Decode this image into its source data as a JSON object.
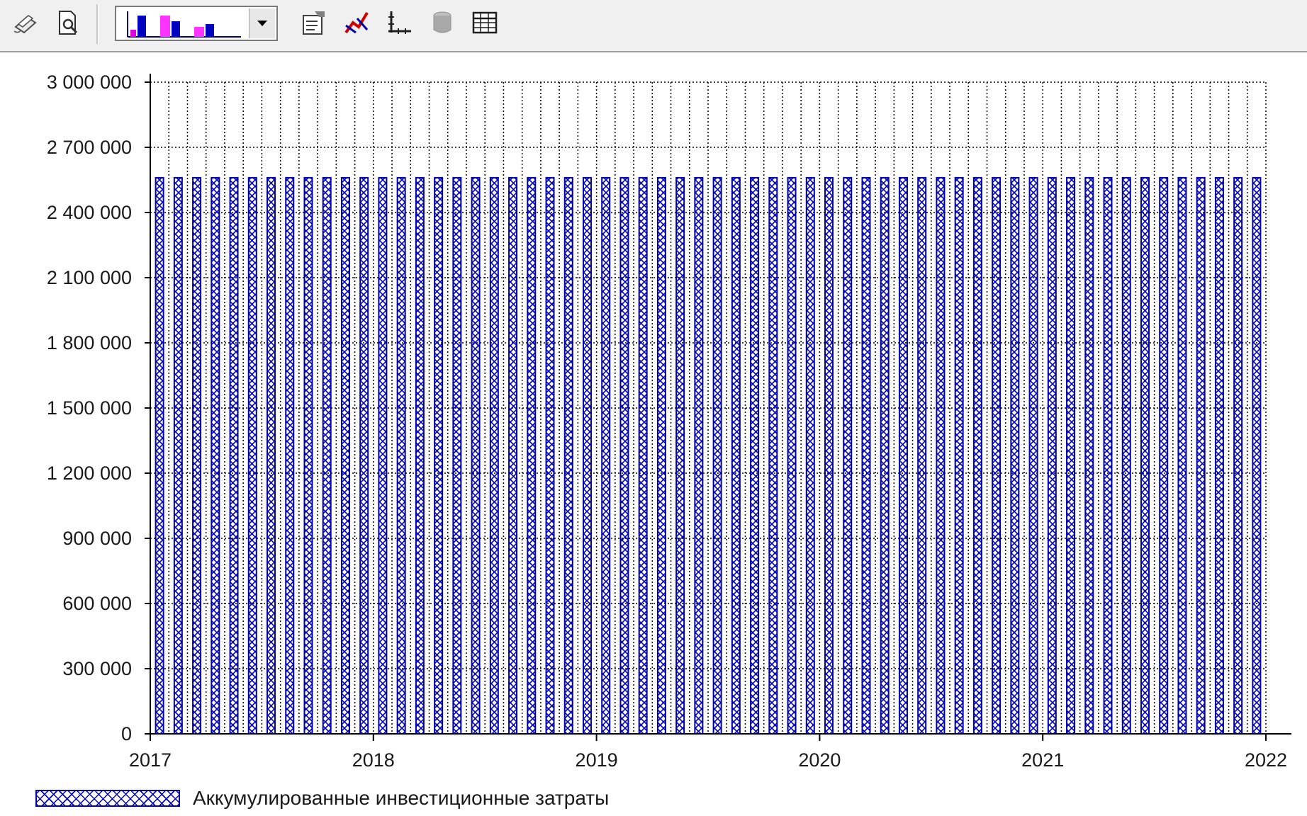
{
  "toolbar": {
    "buttons": [
      {
        "name": "print-icon"
      },
      {
        "name": "print-preview-icon"
      },
      {
        "name": "chart-properties-icon"
      },
      {
        "name": "series-style-icon"
      },
      {
        "name": "axis-settings-icon"
      },
      {
        "name": "3d-view-icon"
      },
      {
        "name": "data-table-icon"
      }
    ],
    "chart_type_select": {
      "selected": "bar-chart"
    }
  },
  "colors": {
    "bar_stroke": "#0000a8",
    "bar_hatch": "#0000c0",
    "grid": "#000000",
    "toolbar_bg": "#f0f0f0"
  },
  "chart_data": {
    "type": "bar",
    "x_ticks": [
      "2017",
      "2018",
      "2019",
      "2020",
      "2021",
      "2022"
    ],
    "y_ticks": [
      "0",
      "300 000",
      "600 000",
      "900 000",
      "1 200 000",
      "1 500 000",
      "1 800 000",
      "2 100 000",
      "2 400 000",
      "2 700 000",
      "3 000 000"
    ],
    "ylim": [
      0,
      3000000
    ],
    "xlim": [
      "2017-01",
      "2022-01"
    ],
    "grid": true,
    "grid_style": "dotted",
    "legend_position": "bottom-left",
    "series": [
      {
        "name": "Аккумулированные инвестиционные затраты",
        "pattern": "crosshatch",
        "x": [
          "2017-01",
          "2017-02",
          "2017-03",
          "2017-04",
          "2017-05",
          "2017-06",
          "2017-07",
          "2017-08",
          "2017-09",
          "2017-10",
          "2017-11",
          "2017-12",
          "2018-01",
          "2018-02",
          "2018-03",
          "2018-04",
          "2018-05",
          "2018-06",
          "2018-07",
          "2018-08",
          "2018-09",
          "2018-10",
          "2018-11",
          "2018-12",
          "2019-01",
          "2019-02",
          "2019-03",
          "2019-04",
          "2019-05",
          "2019-06",
          "2019-07",
          "2019-08",
          "2019-09",
          "2019-10",
          "2019-11",
          "2019-12",
          "2020-01",
          "2020-02",
          "2020-03",
          "2020-04",
          "2020-05",
          "2020-06",
          "2020-07",
          "2020-08",
          "2020-09",
          "2020-10",
          "2020-11",
          "2020-12",
          "2021-01",
          "2021-02",
          "2021-03",
          "2021-04",
          "2021-05",
          "2021-06",
          "2021-07",
          "2021-08",
          "2021-09",
          "2021-10",
          "2021-11",
          "2021-12"
        ],
        "values": [
          2560000,
          2560000,
          2560000,
          2560000,
          2560000,
          2560000,
          2560000,
          2560000,
          2560000,
          2560000,
          2560000,
          2560000,
          2560000,
          2560000,
          2560000,
          2560000,
          2560000,
          2560000,
          2560000,
          2560000,
          2560000,
          2560000,
          2560000,
          2560000,
          2560000,
          2560000,
          2560000,
          2560000,
          2560000,
          2560000,
          2560000,
          2560000,
          2560000,
          2560000,
          2560000,
          2560000,
          2560000,
          2560000,
          2560000,
          2560000,
          2560000,
          2560000,
          2560000,
          2560000,
          2560000,
          2560000,
          2560000,
          2560000,
          2560000,
          2560000,
          2560000,
          2560000,
          2560000,
          2560000,
          2560000,
          2560000,
          2560000,
          2560000,
          2560000,
          2560000
        ]
      }
    ]
  }
}
